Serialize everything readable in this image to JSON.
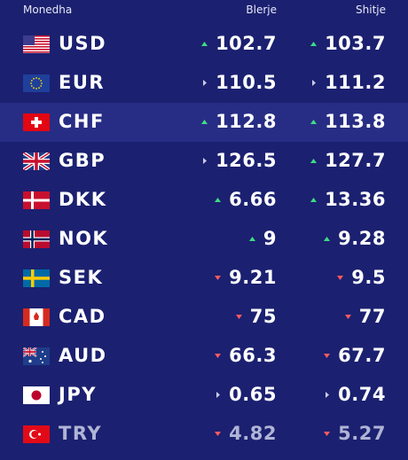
{
  "header": {
    "currency": "Monedha",
    "buy": "Blerje",
    "sell": "Shitje"
  },
  "rows": [
    {
      "code": "USD",
      "buy": 102.7,
      "buy_trend": "up",
      "sell": 103.7,
      "sell_trend": "up"
    },
    {
      "code": "EUR",
      "buy": 110.5,
      "buy_trend": "flat",
      "sell": 111.2,
      "sell_trend": "flat"
    },
    {
      "code": "CHF",
      "buy": 112.8,
      "buy_trend": "up",
      "sell": 113.8,
      "sell_trend": "up"
    },
    {
      "code": "GBP",
      "buy": 126.5,
      "buy_trend": "flat",
      "sell": 127.7,
      "sell_trend": "up"
    },
    {
      "code": "DKK",
      "buy": 6.66,
      "buy_trend": "up",
      "sell": 13.36,
      "sell_trend": "up"
    },
    {
      "code": "NOK",
      "buy": 9,
      "buy_trend": "up",
      "sell": 9.28,
      "sell_trend": "up"
    },
    {
      "code": "SEK",
      "buy": 9.21,
      "buy_trend": "down",
      "sell": 9.5,
      "sell_trend": "down"
    },
    {
      "code": "CAD",
      "buy": 75,
      "buy_trend": "down",
      "sell": 77,
      "sell_trend": "down"
    },
    {
      "code": "AUD",
      "buy": 66.3,
      "buy_trend": "down",
      "sell": 67.7,
      "sell_trend": "down"
    },
    {
      "code": "JPY",
      "buy": 0.65,
      "buy_trend": "flat",
      "sell": 0.74,
      "sell_trend": "flat"
    },
    {
      "code": "TRY",
      "buy": 4.82,
      "buy_trend": "down",
      "sell": 5.27,
      "sell_trend": "down"
    }
  ]
}
